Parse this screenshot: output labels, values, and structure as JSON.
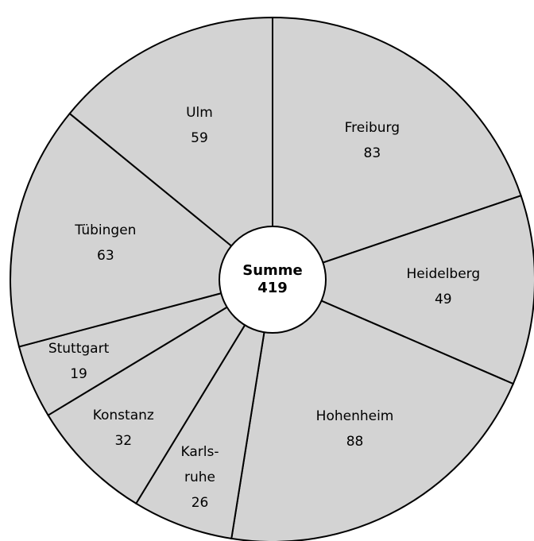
{
  "chart_data": {
    "type": "pie",
    "categories": [
      "Freiburg",
      "Heidelberg",
      "Hohenheim",
      "Karls-\nruhe",
      "Konstanz",
      "Stuttgart",
      "Tübingen",
      "Ulm"
    ],
    "values": [
      83,
      49,
      88,
      26,
      32,
      19,
      63,
      59
    ],
    "color": "#d3d3d3",
    "center_label": "Summe",
    "total": 419
  }
}
